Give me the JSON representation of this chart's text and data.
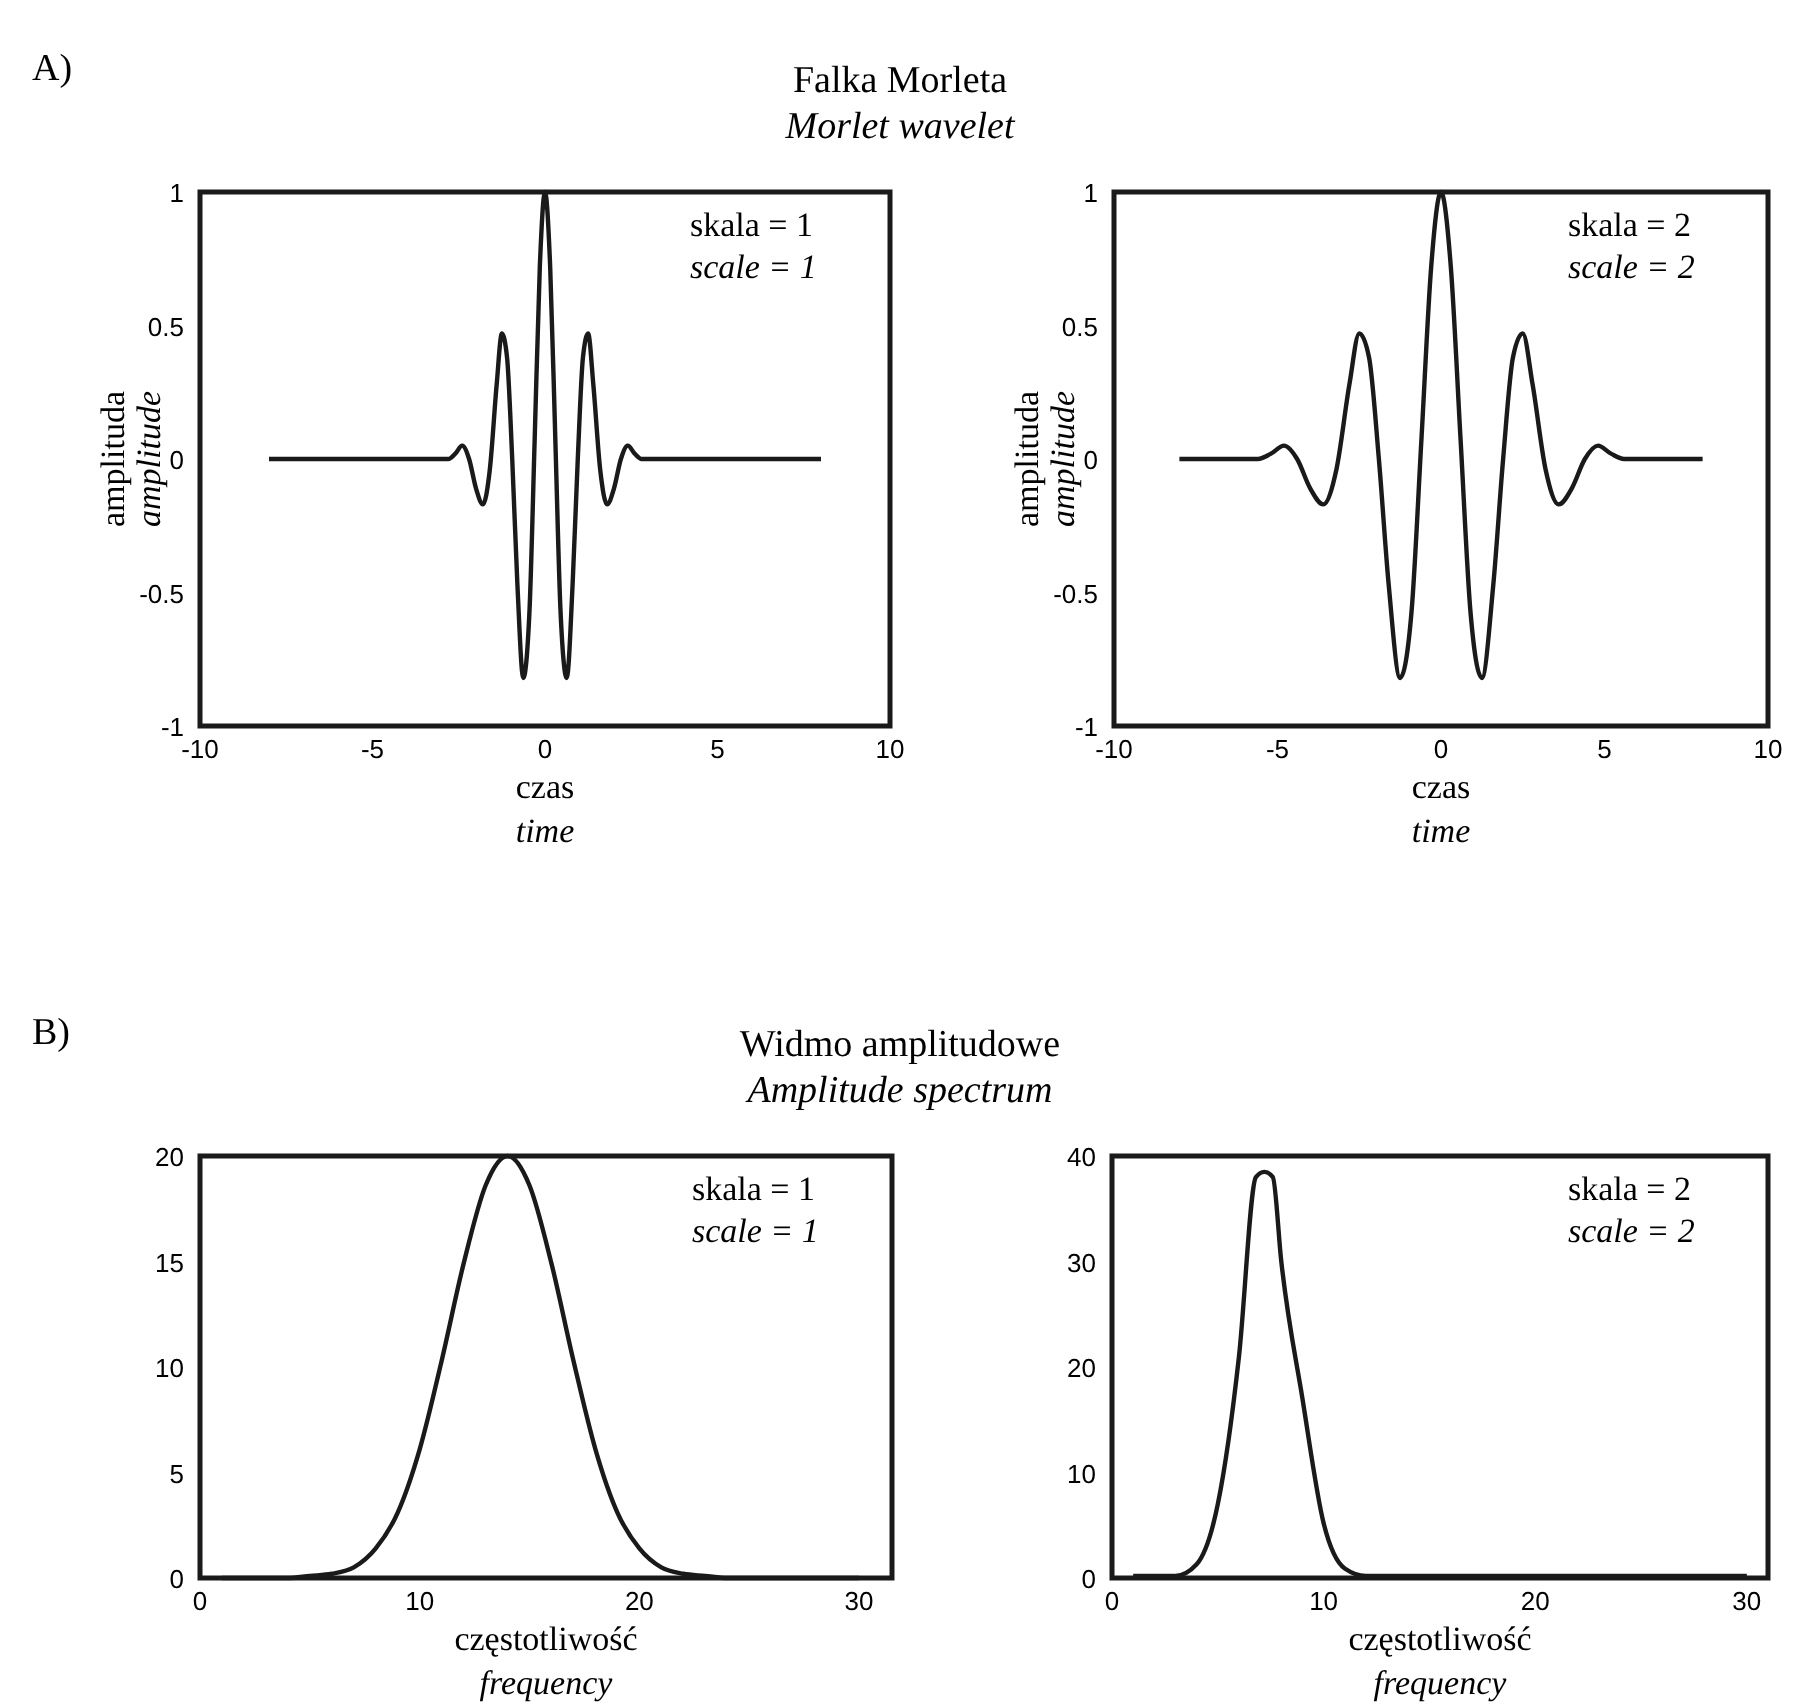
{
  "chart_data": [
    {
      "type": "line",
      "title": "Falka Morleta",
      "subtitle": "Morlet wavelet",
      "xlabel": "czas\ntime",
      "ylabel": "amplituda\namplitude",
      "annotations": [
        "A)",
        "skala = 1",
        "scale = 1"
      ],
      "xlim": [
        -10,
        10
      ],
      "xticks": [
        -10,
        -5,
        0,
        5,
        10
      ],
      "ylim": [
        -1,
        1
      ],
      "yticks": [
        -1,
        -0.5,
        0,
        0.5,
        1
      ],
      "grid": false,
      "series": [
        {
          "color": "#1a1a1a",
          "x": [
            -8,
            -2.8,
            -2.6,
            -2.4,
            -2.2,
            -2,
            -1.8,
            -1.6,
            -1.4,
            -1.25,
            -1.1,
            -0.95,
            -0.8,
            -0.63,
            -0.45,
            -0.3,
            -0.15,
            0,
            0.15,
            0.3,
            0.45,
            0.63,
            0.8,
            0.95,
            1.1,
            1.25,
            1.4,
            1.6,
            1.8,
            2,
            2.2,
            2.4,
            2.6,
            2.8,
            8
          ],
          "values": [
            0,
            0,
            0.02,
            0.05,
            0,
            -0.11,
            -0.17,
            -0.04,
            0.28,
            0.47,
            0.38,
            0,
            -0.47,
            -0.82,
            -0.57,
            0.07,
            0.72,
            1,
            0.72,
            0.07,
            -0.57,
            -0.82,
            -0.47,
            0,
            0.38,
            0.47,
            0.28,
            -0.04,
            -0.17,
            -0.11,
            0,
            0.05,
            0.02,
            0,
            0
          ]
        }
      ]
    },
    {
      "type": "line",
      "xlabel": "czas\ntime",
      "ylabel": "amplituda\namplitude",
      "annotations": [
        "skala = 2",
        "scale = 2"
      ],
      "xlim": [
        -10,
        10
      ],
      "xticks": [
        -10,
        -5,
        0,
        5,
        10
      ],
      "ylim": [
        -1,
        1
      ],
      "yticks": [
        -1,
        -0.5,
        0,
        0.5,
        1
      ],
      "grid": false,
      "series": [
        {
          "color": "#1a1a1a",
          "x": [
            -8,
            -5.6,
            -5.2,
            -4.8,
            -4.4,
            -4,
            -3.6,
            -3.2,
            -2.8,
            -2.5,
            -2.2,
            -1.9,
            -1.6,
            -1.25,
            -0.9,
            -0.6,
            -0.3,
            0,
            0.3,
            0.6,
            0.9,
            1.25,
            1.6,
            1.9,
            2.2,
            2.5,
            2.8,
            3.2,
            3.6,
            4,
            4.4,
            4.8,
            5.2,
            5.6,
            8
          ],
          "values": [
            0,
            0,
            0.02,
            0.05,
            0,
            -0.11,
            -0.17,
            -0.04,
            0.28,
            0.47,
            0.38,
            0,
            -0.47,
            -0.82,
            -0.57,
            0.07,
            0.72,
            1,
            0.72,
            0.07,
            -0.57,
            -0.82,
            -0.47,
            0,
            0.38,
            0.47,
            0.28,
            -0.04,
            -0.17,
            -0.11,
            0,
            0.05,
            0.02,
            0,
            0
          ]
        }
      ]
    },
    {
      "type": "line",
      "title": "Widmo amplitudowe",
      "subtitle": "Amplitude spectrum",
      "xlabel": "częstotliwość\nfrequency",
      "annotations": [
        "B)",
        "skala = 1",
        "scale = 1"
      ],
      "xlim": [
        0,
        31.5
      ],
      "xticks": [
        0,
        10,
        20,
        30
      ],
      "ylim": [
        0,
        20
      ],
      "yticks": [
        0,
        5,
        10,
        15,
        20
      ],
      "grid": false,
      "series": [
        {
          "color": "#1a1a1a",
          "x": [
            1,
            2,
            3,
            4,
            5,
            6,
            7,
            8,
            9,
            10,
            11,
            12,
            13,
            14,
            15,
            16,
            17,
            18,
            19,
            20,
            21,
            22,
            23,
            24,
            25,
            26,
            27,
            28,
            29,
            30
          ],
          "values": [
            0,
            0,
            0,
            0,
            0.1,
            0.2,
            0.5,
            1.4,
            3.1,
            6.1,
            10.3,
            14.9,
            18.6,
            20,
            18.6,
            14.9,
            10.3,
            6.1,
            3.1,
            1.4,
            0.5,
            0.2,
            0.1,
            0,
            0,
            0,
            0,
            0,
            0,
            0
          ]
        }
      ]
    },
    {
      "type": "line",
      "xlabel": "częstotliwość\nfrequency",
      "annotations": [
        "skala = 2",
        "scale = 2"
      ],
      "xlim": [
        0,
        31
      ],
      "xticks": [
        0,
        10,
        20,
        30
      ],
      "ylim": [
        0,
        40
      ],
      "yticks": [
        0,
        10,
        20,
        30,
        40
      ],
      "grid": false,
      "series": [
        {
          "color": "#1a1a1a",
          "x": [
            1,
            2,
            3,
            4,
            5,
            6,
            6.8,
            7.2,
            7.6,
            8,
            9,
            10,
            11,
            12,
            15,
            20,
            25,
            30
          ],
          "values": [
            0.2,
            0.2,
            0.2,
            1.3,
            7,
            21,
            38,
            38.5,
            38,
            30,
            17,
            5.2,
            0.9,
            0.2,
            0.2,
            0.2,
            0.2,
            0.2
          ]
        }
      ]
    }
  ]
}
